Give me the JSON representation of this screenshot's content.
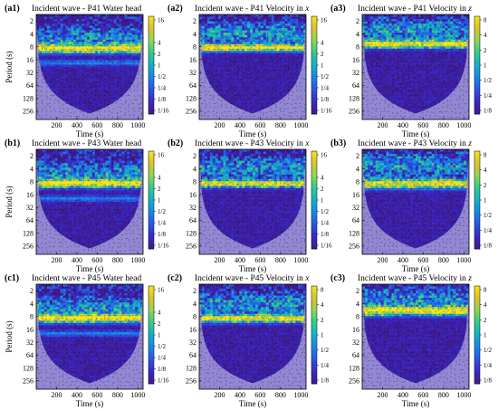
{
  "figure": {
    "colormap": [
      "#3f1a8c",
      "#3b28c4",
      "#2a55e6",
      "#1a86e8",
      "#12b1c9",
      "#31cc8e",
      "#8fd657",
      "#d9c32f",
      "#f8e51b"
    ],
    "coi_color": "#9a90d8",
    "arrow_color": "#000000"
  },
  "chart_data": [
    {
      "type": "heatmap",
      "label": "(a1)",
      "title": "Incident wave - P41 Water head",
      "title_parts": [
        "Incident wave - P41 Water head"
      ],
      "xlabel": "Time (s)",
      "ylabel": "Period (s)",
      "xlim": [
        0,
        1050
      ],
      "x_ticks": [
        "200",
        "400",
        "600",
        "800",
        "1000"
      ],
      "x_tick_values": [
        200,
        400,
        600,
        800,
        1000
      ],
      "y_ticks": [
        "2",
        "4",
        "8",
        "16",
        "32",
        "64",
        "128",
        "256"
      ],
      "y_tick_values": [
        2,
        4,
        8,
        16,
        32,
        64,
        128,
        256
      ],
      "ylim": [
        1.4,
        400
      ],
      "y_scale": "log2",
      "y_reversed": true,
      "colorbar_ticks": [
        "16",
        "4",
        "2",
        "1",
        "1/2",
        "1/4",
        "1/8",
        "1/16"
      ],
      "colorbar_values": [
        16,
        4,
        2,
        1,
        0.5,
        0.25,
        0.125,
        0.0625
      ],
      "colorbar_range": [
        0.0625,
        16
      ],
      "peak_period": 9,
      "peak_width": 0.32,
      "max_period_high": 4,
      "secondary_period": 19
    },
    {
      "type": "heatmap",
      "label": "(a2)",
      "title": "Incident wave - P41 Velocity in x",
      "title_parts": [
        "Incident wave - P41 Velocity in ",
        "x"
      ],
      "xlabel": "Time (s)",
      "ylabel": "",
      "xlim": [
        0,
        1050
      ],
      "x_ticks": [
        "200",
        "400",
        "600",
        "800",
        "1000"
      ],
      "x_tick_values": [
        200,
        400,
        600,
        800,
        1000
      ],
      "y_ticks": [
        "2",
        "4",
        "8",
        "16",
        "32",
        "64",
        "128",
        "256"
      ],
      "y_tick_values": [
        2,
        4,
        8,
        16,
        32,
        64,
        128,
        256
      ],
      "ylim": [
        1.4,
        400
      ],
      "y_scale": "log2",
      "y_reversed": true,
      "colorbar_ticks": [
        "16",
        "4",
        "2",
        "1",
        "1/2",
        "1/4",
        "1/8",
        "1/16"
      ],
      "colorbar_values": [
        16,
        4,
        2,
        1,
        0.5,
        0.25,
        0.125,
        0.0625
      ],
      "colorbar_range": [
        0.0625,
        16
      ],
      "peak_period": 8.5,
      "peak_width": 0.27,
      "max_period_high": 3,
      "secondary_period": 0
    },
    {
      "type": "heatmap",
      "label": "(a3)",
      "title": "Incident wave - P41 Velocity in z",
      "title_parts": [
        "Incident wave - P41 Velocity in ",
        "z"
      ],
      "xlabel": "Time (s)",
      "ylabel": "",
      "xlim": [
        0,
        1050
      ],
      "x_ticks": [
        "200",
        "400",
        "600",
        "800",
        "1000"
      ],
      "x_tick_values": [
        200,
        400,
        600,
        800,
        1000
      ],
      "y_ticks": [
        "2",
        "4",
        "8",
        "16",
        "32",
        "64",
        "128",
        "256"
      ],
      "y_tick_values": [
        2,
        4,
        8,
        16,
        32,
        64,
        128,
        256
      ],
      "ylim": [
        1.4,
        400
      ],
      "y_scale": "log2",
      "y_reversed": true,
      "colorbar_ticks": [
        "8",
        "4",
        "2",
        "1",
        "1/2",
        "1/4",
        "1/8"
      ],
      "colorbar_values": [
        8,
        4,
        2,
        1,
        0.5,
        0.25,
        0.125
      ],
      "colorbar_range": [
        0.125,
        8
      ],
      "peak_period": 7,
      "peak_width": 0.3,
      "max_period_high": 2.5,
      "secondary_period": 0
    },
    {
      "type": "heatmap",
      "label": "(b1)",
      "title": "Incident wave - P43 Water head",
      "title_parts": [
        "Incident wave - P43 Water head"
      ],
      "xlabel": "Time (s)",
      "ylabel": "Period (s)",
      "xlim": [
        0,
        1050
      ],
      "x_ticks": [
        "200",
        "400",
        "600",
        "800",
        "1000"
      ],
      "x_tick_values": [
        200,
        400,
        600,
        800,
        1000
      ],
      "y_ticks": [
        "2",
        "4",
        "8",
        "16",
        "32",
        "64",
        "128",
        "256"
      ],
      "y_tick_values": [
        2,
        4,
        8,
        16,
        32,
        64,
        128,
        256
      ],
      "ylim": [
        1.4,
        400
      ],
      "y_scale": "log2",
      "y_reversed": true,
      "colorbar_ticks": [
        "16",
        "4",
        "2",
        "1",
        "1/2",
        "1/4",
        "1/8",
        "1/16"
      ],
      "colorbar_values": [
        16,
        4,
        2,
        1,
        0.5,
        0.25,
        0.125,
        0.0625
      ],
      "colorbar_range": [
        0.0625,
        16
      ],
      "peak_period": 9,
      "peak_width": 0.3,
      "max_period_high": 4,
      "secondary_period": 20
    },
    {
      "type": "heatmap",
      "label": "(b2)",
      "title": "Incident wave - P43 Velocity in x",
      "title_parts": [
        "Incident wave - P43 Velocity in ",
        "x"
      ],
      "xlabel": "Time (s)",
      "ylabel": "",
      "xlim": [
        0,
        1050
      ],
      "x_ticks": [
        "200",
        "400",
        "600",
        "800",
        "1000"
      ],
      "x_tick_values": [
        200,
        400,
        600,
        800,
        1000
      ],
      "y_ticks": [
        "2",
        "4",
        "8",
        "16",
        "32",
        "64",
        "128",
        "256"
      ],
      "y_tick_values": [
        2,
        4,
        8,
        16,
        32,
        64,
        128,
        256
      ],
      "ylim": [
        1.4,
        400
      ],
      "y_scale": "log2",
      "y_reversed": true,
      "colorbar_ticks": [
        "16",
        "4",
        "2",
        "1",
        "1/2",
        "1/4",
        "1/8",
        "1/16"
      ],
      "colorbar_values": [
        16,
        4,
        2,
        1,
        0.5,
        0.25,
        0.125,
        0.0625
      ],
      "colorbar_range": [
        0.0625,
        16
      ],
      "peak_period": 9,
      "peak_width": 0.27,
      "max_period_high": 3,
      "secondary_period": 0
    },
    {
      "type": "heatmap",
      "label": "(b3)",
      "title": "Incident wave - P43 Velocity in z",
      "title_parts": [
        "Incident wave - P43 Velocity in ",
        "z"
      ],
      "xlabel": "Time (s)",
      "ylabel": "",
      "xlim": [
        0,
        1050
      ],
      "x_ticks": [
        "200",
        "400",
        "600",
        "800",
        "1000"
      ],
      "x_tick_values": [
        200,
        400,
        600,
        800,
        1000
      ],
      "y_ticks": [
        "2",
        "4",
        "8",
        "16",
        "32",
        "64",
        "128",
        "256"
      ],
      "y_tick_values": [
        2,
        4,
        8,
        16,
        32,
        64,
        128,
        256
      ],
      "ylim": [
        1.4,
        400
      ],
      "y_scale": "log2",
      "y_reversed": true,
      "colorbar_ticks": [
        "8",
        "4",
        "2",
        "1",
        "1/2",
        "1/4",
        "1/8"
      ],
      "colorbar_values": [
        8,
        4,
        2,
        1,
        0.5,
        0.25,
        0.125
      ],
      "colorbar_range": [
        0.125,
        8
      ],
      "peak_period": 9,
      "peak_width": 0.36,
      "max_period_high": 2.5,
      "secondary_period": 0
    },
    {
      "type": "heatmap",
      "label": "(c1)",
      "title": "Incident wave - P45 Water head",
      "title_parts": [
        "Incident wave - P45 Water head"
      ],
      "xlabel": "Time (s)",
      "ylabel": "Period (s)",
      "xlim": [
        0,
        1050
      ],
      "x_ticks": [
        "200",
        "400",
        "600",
        "800",
        "1000"
      ],
      "x_tick_values": [
        200,
        400,
        600,
        800,
        1000
      ],
      "y_ticks": [
        "2",
        "4",
        "8",
        "16",
        "32",
        "64",
        "128",
        "256"
      ],
      "y_tick_values": [
        2,
        4,
        8,
        16,
        32,
        64,
        128,
        256
      ],
      "ylim": [
        1.4,
        400
      ],
      "y_scale": "log2",
      "y_reversed": true,
      "colorbar_ticks": [
        "16",
        "4",
        "2",
        "1",
        "1/2",
        "1/4",
        "1/8",
        "1/16"
      ],
      "colorbar_values": [
        16,
        4,
        2,
        1,
        0.5,
        0.25,
        0.125,
        0.0625
      ],
      "colorbar_range": [
        0.0625,
        16
      ],
      "peak_period": 9,
      "peak_width": 0.32,
      "max_period_high": 4,
      "secondary_period": 20
    },
    {
      "type": "heatmap",
      "label": "(c2)",
      "title": "Incident wave - P45 Velocity in x",
      "title_parts": [
        "Incident wave - P45 Velocity in ",
        "x"
      ],
      "xlabel": "Time (s)",
      "ylabel": "",
      "xlim": [
        0,
        1050
      ],
      "x_ticks": [
        "200",
        "400",
        "600",
        "800",
        "1000"
      ],
      "x_tick_values": [
        200,
        400,
        600,
        800,
        1000
      ],
      "y_ticks": [
        "2",
        "4",
        "8",
        "16",
        "32",
        "64",
        "128",
        "256"
      ],
      "y_tick_values": [
        2,
        4,
        8,
        16,
        32,
        64,
        128,
        256
      ],
      "ylim": [
        1.4,
        400
      ],
      "y_scale": "log2",
      "y_reversed": true,
      "colorbar_ticks": [
        "8",
        "4",
        "2",
        "1",
        "1/2",
        "1/4",
        "1/8"
      ],
      "colorbar_values": [
        8,
        4,
        2,
        1,
        0.5,
        0.25,
        0.125
      ],
      "colorbar_range": [
        0.125,
        8
      ],
      "peak_period": 9,
      "peak_width": 0.3,
      "max_period_high": 3,
      "secondary_period": 0
    },
    {
      "type": "heatmap",
      "label": "(c3)",
      "title": "Incident wave - P45 Velocity in z",
      "title_parts": [
        "Incident wave - P45 Velocity in ",
        "z"
      ],
      "xlabel": "Time (s)",
      "ylabel": "",
      "xlim": [
        0,
        1050
      ],
      "x_ticks": [
        "200",
        "400",
        "600",
        "800",
        "1000"
      ],
      "x_tick_values": [
        200,
        400,
        600,
        800,
        1000
      ],
      "y_ticks": [
        "2",
        "4",
        "8",
        "16",
        "32",
        "64",
        "128",
        "256"
      ],
      "y_tick_values": [
        2,
        4,
        8,
        16,
        32,
        64,
        128,
        256
      ],
      "ylim": [
        1.4,
        400
      ],
      "y_scale": "log2",
      "y_reversed": true,
      "colorbar_ticks": [
        "8",
        "4",
        "2",
        "1",
        "1/2",
        "1/4",
        "1/8"
      ],
      "colorbar_values": [
        8,
        4,
        2,
        1,
        0.5,
        0.25,
        0.125
      ],
      "colorbar_range": [
        0.125,
        8
      ],
      "peak_period": 6,
      "peak_width": 0.34,
      "max_period_high": 2.5,
      "secondary_period": 0
    }
  ]
}
